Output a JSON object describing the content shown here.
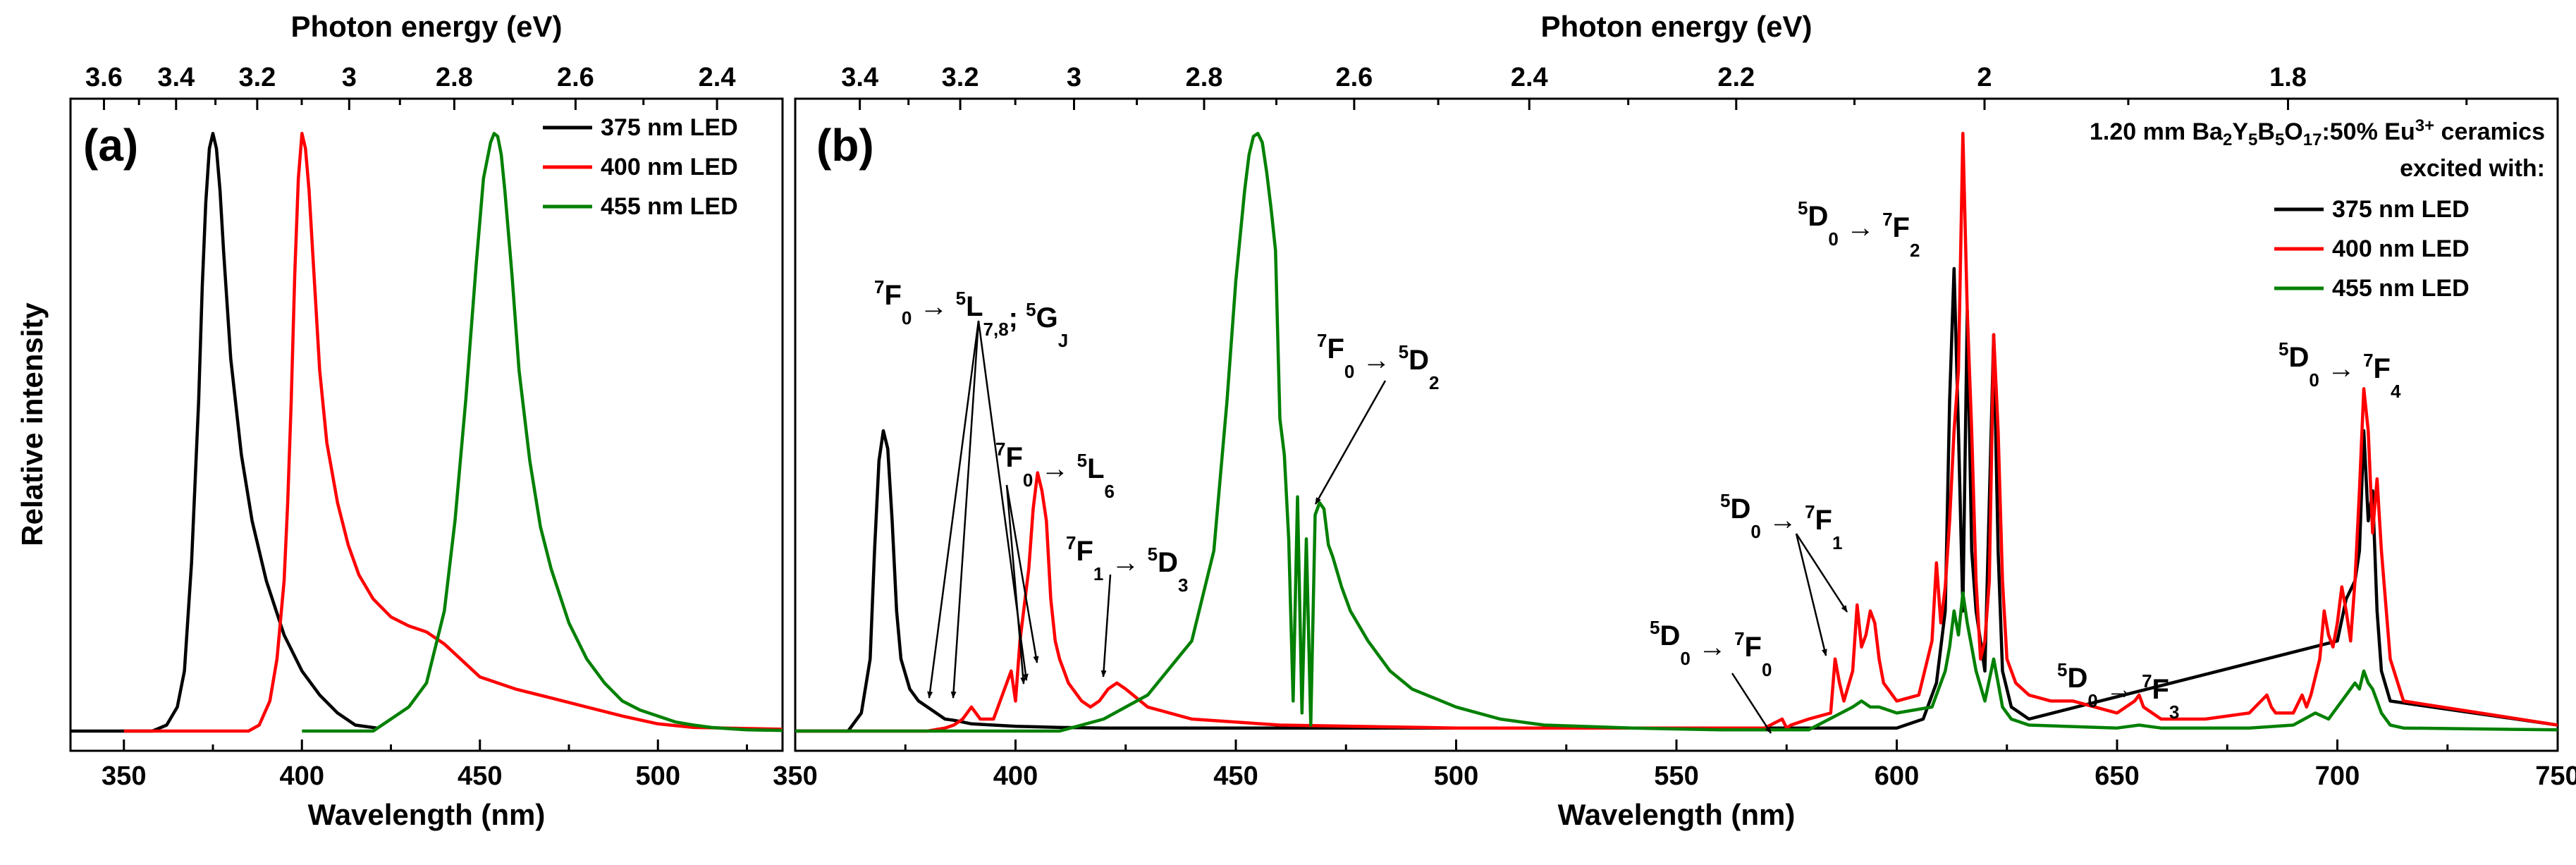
{
  "chart_data": [
    {
      "panel_label": "(a)",
      "type": "line",
      "xlabel": "Wavelength (nm)",
      "ylabel": "Relative intensity",
      "top_xlabel": "Photon energy (eV)",
      "xlim": [
        335,
        535
      ],
      "ylim": [
        0,
        1.0
      ],
      "x_ticks": [
        "350",
        "400",
        "450",
        "500"
      ],
      "top_ticks": [
        "3.6",
        "3.4",
        "3.2",
        "3",
        "2.8",
        "2.6",
        "2.4"
      ],
      "legend": {
        "position": "top-right"
      },
      "series": [
        {
          "name": "375 nm LED",
          "color": "#000000",
          "x": [
            335,
            358,
            362,
            365,
            367,
            369,
            371,
            372,
            373,
            374,
            375,
            376,
            377,
            378,
            380,
            383,
            386,
            390,
            395,
            400,
            405,
            410,
            415,
            421
          ],
          "y": [
            0,
            0,
            0.01,
            0.04,
            0.1,
            0.28,
            0.55,
            0.74,
            0.88,
            0.97,
            0.995,
            0.97,
            0.9,
            0.8,
            0.62,
            0.46,
            0.35,
            0.25,
            0.16,
            0.1,
            0.06,
            0.03,
            0.01,
            0.005
          ]
        },
        {
          "name": "400 nm LED",
          "color": "#ff0000",
          "x": [
            350,
            385,
            388,
            391,
            393,
            395,
            396,
            397,
            398,
            399,
            400,
            401,
            402,
            403,
            405,
            407,
            410,
            413,
            416,
            420,
            425,
            430,
            435,
            440,
            450,
            460,
            470,
            480,
            490,
            500,
            510,
            535
          ],
          "y": [
            0,
            0,
            0.01,
            0.05,
            0.12,
            0.25,
            0.38,
            0.55,
            0.76,
            0.92,
            0.995,
            0.97,
            0.9,
            0.8,
            0.6,
            0.48,
            0.38,
            0.31,
            0.26,
            0.22,
            0.19,
            0.175,
            0.165,
            0.145,
            0.09,
            0.07,
            0.055,
            0.04,
            0.025,
            0.012,
            0.006,
            0.003
          ]
        },
        {
          "name": "455 nm LED",
          "color": "#008000",
          "x": [
            400,
            420,
            425,
            430,
            435,
            440,
            443,
            446,
            449,
            451,
            453,
            454,
            455,
            456,
            457,
            459,
            461,
            464,
            467,
            470,
            475,
            480,
            485,
            490,
            495,
            500,
            505,
            510,
            515,
            520,
            525,
            535
          ],
          "y": [
            0,
            0,
            0.02,
            0.04,
            0.08,
            0.2,
            0.35,
            0.55,
            0.78,
            0.92,
            0.98,
            0.995,
            0.99,
            0.96,
            0.9,
            0.76,
            0.6,
            0.45,
            0.34,
            0.27,
            0.18,
            0.12,
            0.08,
            0.05,
            0.035,
            0.025,
            0.015,
            0.01,
            0.006,
            0.004,
            0.002,
            0.001
          ]
        }
      ]
    },
    {
      "panel_label": "(b)",
      "type": "line",
      "xlabel": "Wavelength (nm)",
      "top_xlabel": "Photon energy (eV)",
      "xlim": [
        350,
        750
      ],
      "ylim": [
        0,
        1.0
      ],
      "x_ticks": [
        "350",
        "400",
        "450",
        "500",
        "550",
        "600",
        "650",
        "700",
        "750"
      ],
      "top_ticks": [
        "3.4",
        "3.2",
        "3",
        "2.8",
        "2.6",
        "2.4",
        "2.2",
        "2",
        "1.8"
      ],
      "legend": {
        "position": "top-right",
        "title_lines": [
          "1.20 mm Ba2Y5B5O17:50% Eu3+ ceramics",
          "excited with:"
        ]
      },
      "series": [
        {
          "name": "375 nm LED",
          "color": "#000000",
          "x": [
            350,
            362,
            365,
            367,
            368,
            369,
            370,
            371,
            372,
            373,
            374,
            376,
            378,
            380,
            384,
            386,
            388,
            390,
            395,
            400,
            405,
            410,
            420,
            600,
            606,
            609,
            611,
            612,
            613,
            614,
            615,
            616,
            617,
            618,
            620,
            622,
            623,
            624,
            626,
            630,
            700,
            702,
            704,
            705,
            706,
            707,
            708,
            709,
            710,
            712,
            750
          ],
          "y": [
            0,
            0,
            0.03,
            0.12,
            0.3,
            0.45,
            0.5,
            0.47,
            0.35,
            0.2,
            0.12,
            0.07,
            0.05,
            0.04,
            0.02,
            0.018,
            0.015,
            0.012,
            0.01,
            0.008,
            0.007,
            0.006,
            0.005,
            0.005,
            0.02,
            0.08,
            0.2,
            0.55,
            0.77,
            0.5,
            0.2,
            0.7,
            0.3,
            0.2,
            0.1,
            0.66,
            0.3,
            0.1,
            0.04,
            0.02,
            0.15,
            0.22,
            0.25,
            0.3,
            0.5,
            0.35,
            0.4,
            0.2,
            0.1,
            0.05,
            0.01
          ]
        },
        {
          "name": "400 nm LED",
          "color": "#ff0000",
          "x": [
            350,
            380,
            384,
            386,
            388,
            390,
            392,
            395,
            397,
            399,
            400,
            401,
            403,
            404,
            405,
            406,
            407,
            408,
            409,
            410,
            411,
            412,
            413,
            415,
            417,
            419,
            421,
            423,
            425,
            430,
            440,
            460,
            500,
            570,
            574,
            575,
            576,
            580,
            585,
            586,
            587,
            588,
            590,
            591,
            592,
            593,
            594,
            595,
            596,
            597,
            600,
            605,
            608,
            609,
            610,
            611,
            612,
            613,
            614,
            615,
            616,
            617,
            618,
            619,
            620,
            621,
            622,
            623,
            624,
            625,
            627,
            630,
            635,
            640,
            645,
            650,
            654,
            655,
            656,
            660,
            670,
            680,
            684,
            685,
            686,
            690,
            692,
            693,
            694,
            696,
            697,
            698,
            699,
            700,
            701,
            702,
            703,
            704,
            705,
            706,
            707,
            708,
            709,
            710,
            712,
            715,
            750
          ],
          "y": [
            0,
            0,
            0.005,
            0.01,
            0.02,
            0.04,
            0.02,
            0.02,
            0.06,
            0.1,
            0.05,
            0.15,
            0.27,
            0.37,
            0.43,
            0.4,
            0.35,
            0.22,
            0.15,
            0.12,
            0.1,
            0.08,
            0.07,
            0.05,
            0.04,
            0.05,
            0.07,
            0.08,
            0.07,
            0.04,
            0.02,
            0.01,
            0.005,
            0.005,
            0.02,
            0.005,
            0.01,
            0.02,
            0.03,
            0.12,
            0.08,
            0.05,
            0.1,
            0.21,
            0.14,
            0.16,
            0.2,
            0.18,
            0.12,
            0.08,
            0.05,
            0.06,
            0.15,
            0.28,
            0.18,
            0.24,
            0.35,
            0.5,
            0.6,
            0.995,
            0.7,
            0.5,
            0.25,
            0.12,
            0.15,
            0.25,
            0.66,
            0.5,
            0.25,
            0.12,
            0.08,
            0.06,
            0.05,
            0.05,
            0.04,
            0.03,
            0.05,
            0.06,
            0.04,
            0.02,
            0.02,
            0.03,
            0.06,
            0.04,
            0.03,
            0.03,
            0.06,
            0.04,
            0.06,
            0.12,
            0.2,
            0.16,
            0.14,
            0.18,
            0.24,
            0.2,
            0.15,
            0.25,
            0.4,
            0.57,
            0.5,
            0.33,
            0.42,
            0.3,
            0.12,
            0.05,
            0.01
          ]
        },
        {
          "name": "455 nm LED",
          "color": "#008000",
          "x": [
            350,
            410,
            420,
            430,
            440,
            445,
            448,
            450,
            452,
            453,
            454,
            455,
            456,
            457,
            458,
            459,
            460,
            461,
            462,
            463,
            464,
            465,
            466,
            467,
            468,
            469,
            470,
            471,
            472,
            474,
            476,
            480,
            485,
            490,
            500,
            510,
            520,
            540,
            560,
            580,
            590,
            592,
            594,
            596,
            600,
            608,
            610,
            611,
            612,
            613,
            614,
            615,
            616,
            617,
            618,
            620,
            622,
            623,
            624,
            626,
            630,
            650,
            655,
            660,
            680,
            690,
            695,
            698,
            700,
            702,
            704,
            705,
            706,
            707,
            708,
            709,
            710,
            712,
            715,
            750
          ],
          "y": [
            0,
            0,
            0.02,
            0.06,
            0.15,
            0.3,
            0.55,
            0.75,
            0.9,
            0.96,
            0.99,
            0.995,
            0.98,
            0.93,
            0.87,
            0.8,
            0.52,
            0.46,
            0.32,
            0.05,
            0.39,
            0.03,
            0.32,
            0.01,
            0.36,
            0.38,
            0.37,
            0.31,
            0.29,
            0.24,
            0.2,
            0.15,
            0.1,
            0.07,
            0.04,
            0.02,
            0.01,
            0.005,
            0.002,
            0.002,
            0.04,
            0.05,
            0.04,
            0.04,
            0.03,
            0.04,
            0.08,
            0.1,
            0.14,
            0.2,
            0.16,
            0.23,
            0.18,
            0.14,
            0.1,
            0.05,
            0.12,
            0.08,
            0.04,
            0.02,
            0.01,
            0.005,
            0.01,
            0.005,
            0.005,
            0.01,
            0.03,
            0.02,
            0.04,
            0.06,
            0.08,
            0.07,
            0.1,
            0.08,
            0.07,
            0.05,
            0.03,
            0.01,
            0.005,
            0.002
          ]
        }
      ],
      "annotations": {
        "a1": [
          "7",
          "F",
          "0",
          " → ",
          "5",
          "L",
          "7,8",
          "; ",
          "5",
          "G",
          "J"
        ],
        "a2": [
          "7",
          "F",
          "0",
          " → ",
          "5",
          "L",
          "6"
        ],
        "a3": [
          "7",
          "F",
          "1",
          " → ",
          "5",
          "D",
          "3"
        ],
        "a4": [
          "7",
          "F",
          "0",
          " → ",
          "5",
          "D",
          "2"
        ],
        "a5": [
          "5",
          "D",
          "0",
          " → ",
          "7",
          "F",
          "1"
        ],
        "a6": [
          "5",
          "D",
          "0",
          " → ",
          "7",
          "F",
          "0"
        ],
        "a7": [
          "5",
          "D",
          "0",
          " → ",
          "7",
          "F",
          "2"
        ],
        "a8": [
          "5",
          "D",
          "0",
          " → ",
          "7",
          "F",
          "3"
        ],
        "a9": [
          "5",
          "D",
          "0",
          " → ",
          "7",
          "F",
          "4"
        ]
      }
    }
  ]
}
